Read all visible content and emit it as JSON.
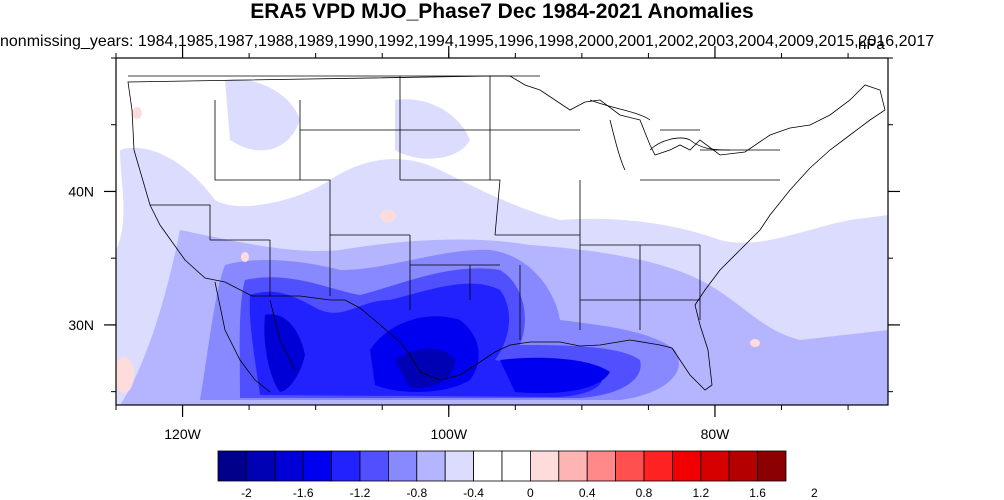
{
  "title": "ERA5 VPD MJO_Phase7 Dec 1984-2021 Anomalies",
  "subtitle": "nonmissing_years: 1984,1985,1987,1988,1989,1990,1992,1994,1995,1996,1998,2000,2001,2002,2003,2004,2009,2015,2016,2017",
  "units": "hPa",
  "map": {
    "lat_labels": [
      {
        "lat": 40,
        "text": "40N"
      },
      {
        "lat": 30,
        "text": "30N"
      }
    ],
    "lon_labels": [
      {
        "lon": -120,
        "text": "120W"
      },
      {
        "lon": -100,
        "text": "100W"
      },
      {
        "lon": -80,
        "text": "80W"
      }
    ],
    "lon_range": [
      -125,
      -67
    ],
    "lat_range": [
      24,
      50
    ]
  },
  "colorbar": {
    "labels": [
      "-2",
      "-1.6",
      "-1.2",
      "-0.8",
      "-0.4",
      "0",
      "0.4",
      "0.8",
      "1.2",
      "1.6",
      "2"
    ],
    "colors": [
      "#00008b",
      "#0000b4",
      "#0000d6",
      "#0000f0",
      "#2222ff",
      "#5050ff",
      "#8888ff",
      "#b4b4ff",
      "#dcdcff",
      "#ffffff",
      "#ffffff",
      "#ffdcdc",
      "#ffb4b4",
      "#ff8888",
      "#ff5050",
      "#ff2222",
      "#f00000",
      "#d60000",
      "#b40000",
      "#8b0000"
    ]
  }
}
